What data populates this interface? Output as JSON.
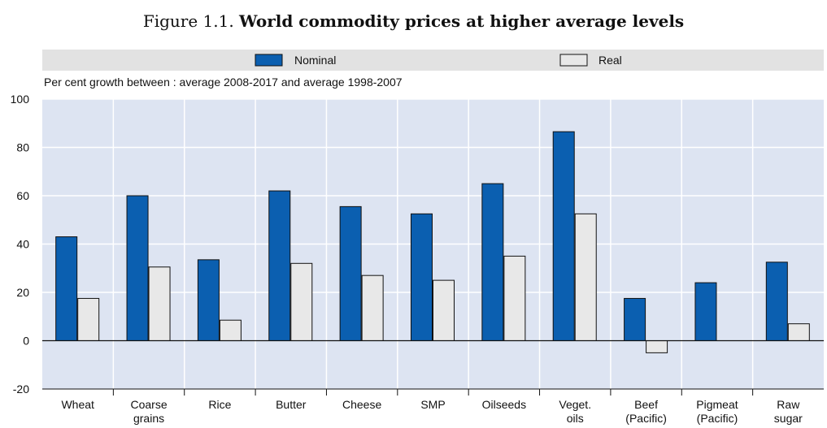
{
  "figure": {
    "number": "Figure 1.1.",
    "title": "World commodity prices at higher average levels"
  },
  "chart_data": {
    "type": "bar",
    "subtitle": "Per cent growth between : average 2008-2017 and average 1998-2007",
    "categories": [
      [
        "Wheat"
      ],
      [
        "Coarse",
        "grains"
      ],
      [
        "Rice"
      ],
      [
        "Butter"
      ],
      [
        "Cheese"
      ],
      [
        "SMP"
      ],
      [
        "Oilseeds"
      ],
      [
        "Veget.",
        "oils"
      ],
      [
        "Beef",
        "(Pacific)"
      ],
      [
        "Pigmeat",
        "(Pacific)"
      ],
      [
        "Raw",
        "sugar"
      ]
    ],
    "series": [
      {
        "name": "Nominal",
        "color": "#0b5fb0",
        "values": [
          43,
          60,
          33.5,
          62,
          55.5,
          52.5,
          65,
          86.5,
          17.5,
          24,
          32.5
        ]
      },
      {
        "name": "Real",
        "color": "#e8e8e8",
        "values": [
          17.5,
          30.5,
          8.5,
          32,
          27,
          25,
          35,
          52.5,
          -5,
          null,
          7
        ]
      }
    ],
    "ylim": [
      -20,
      100
    ],
    "yticks": [
      -20,
      0,
      20,
      40,
      60,
      80,
      100
    ],
    "grid": true,
    "legend": "top"
  }
}
